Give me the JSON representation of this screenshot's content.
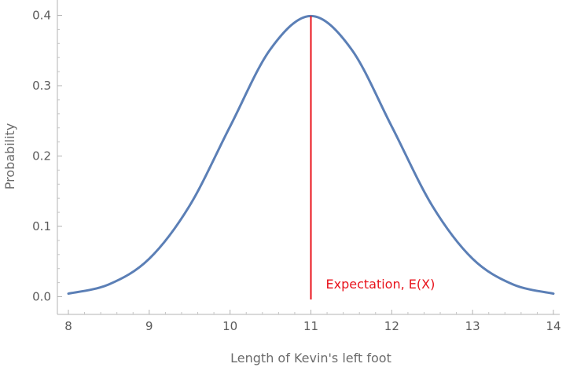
{
  "chart_data": {
    "type": "line",
    "title": "",
    "xlabel": "Length of Kevin's left foot",
    "ylabel": "Probability",
    "xlim": [
      7.9,
      14.1
    ],
    "ylim": [
      0,
      0.4
    ],
    "x_ticks": [
      8,
      9,
      10,
      11,
      12,
      13,
      14
    ],
    "x_tick_labels": [
      "8",
      "9",
      "10",
      "11",
      "12",
      "13",
      "14"
    ],
    "y_ticks": [
      0.0,
      0.1,
      0.2,
      0.3,
      0.4
    ],
    "y_tick_labels": [
      "0.0",
      "0.1",
      "0.2",
      "0.3",
      "0.4"
    ],
    "series": [
      {
        "color": "#5b7fb6",
        "x": [
          8.0,
          8.5,
          9.0,
          9.5,
          10.0,
          10.5,
          11.0,
          11.5,
          12.0,
          12.5,
          13.0,
          13.5,
          14.0
        ],
        "values": [
          0.0044,
          0.0175,
          0.054,
          0.1295,
          0.242,
          0.352,
          0.399,
          0.352,
          0.242,
          0.1295,
          0.054,
          0.0175,
          0.0044
        ]
      }
    ],
    "mean_line": {
      "x": 11,
      "color": "#e8121b"
    },
    "annotation": {
      "text": "Expectation, E(X)",
      "color": "#e8121b"
    },
    "grid": false
  }
}
